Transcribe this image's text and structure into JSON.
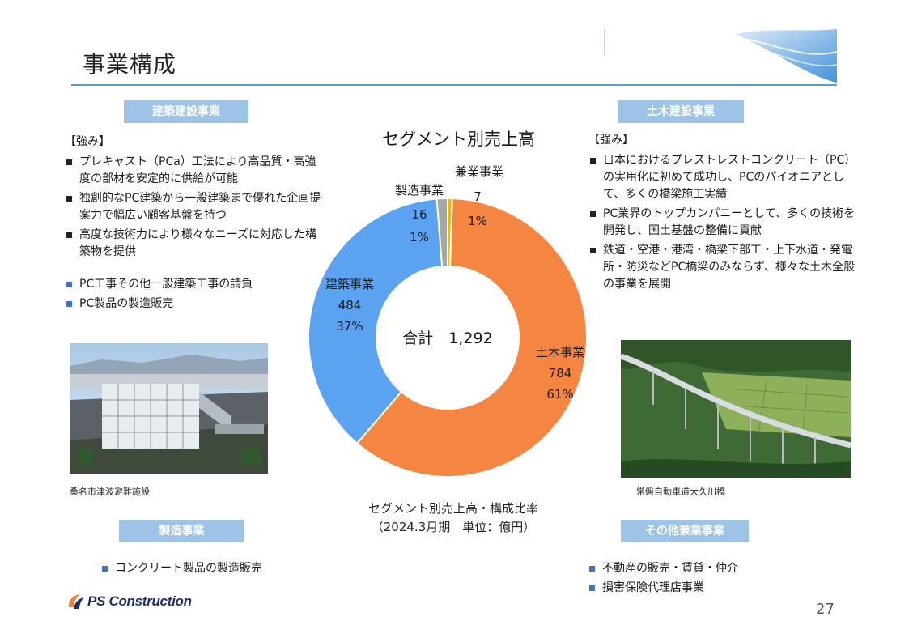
{
  "slide": {
    "title": "事業構成",
    "page_number": "27",
    "brand": "PS Construction"
  },
  "segments": {
    "architecture": {
      "header": "建築建設事業",
      "strength_title": "【強み】",
      "strengths": [
        "プレキャスト（PCa）工法により高品質・高強度の部材を安定的に供給が可能",
        "独創的なPC建築から一般建築まで優れた企画提案力で幅広い顧客基盤を持つ",
        "高度な技術力により様々なニーズに対応した構築物を提供"
      ],
      "business": [
        "PC工事その他一般建築工事の請負",
        "PC製品の製造販売"
      ],
      "photo_caption": "桑名市津波避難施設"
    },
    "civil": {
      "header": "土木建設事業",
      "strength_title": "【強み】",
      "strengths": [
        "日本におけるプレストレストコンクリート（PC）の実用化に初めて成功し、PCのパイオニアとして、多くの橋梁施工実績",
        "PC業界のトップカンパニーとして、多くの技術を開発し、国土基盤の整備に貢献",
        "鉄道・空港・港湾・橋梁下部工・上下水道・発電所・防災などPC橋梁のみならず、様々な土木全般の事業を展開"
      ],
      "photo_caption": "常磐自動車道大久川橋"
    },
    "manufacturing": {
      "header": "製造事業",
      "business": [
        "コンクリート製品の製造販売"
      ]
    },
    "other": {
      "header": "その他兼業事業",
      "business": [
        "不動産の販売・賃貸・仲介",
        "損害保険代理店事業"
      ]
    }
  },
  "chart_data": {
    "type": "pie",
    "title": "セグメント別売上高",
    "center_label": "合計　1,292",
    "slices": [
      {
        "name": "土木事業",
        "value": 784,
        "value_label": "784",
        "percent_label": "61%",
        "color": "#f58642"
      },
      {
        "name": "建築事業",
        "value": 484,
        "value_label": "484",
        "percent_label": "37%",
        "color": "#5ba3f0"
      },
      {
        "name": "製造事業",
        "value": 16,
        "value_label": "16",
        "percent_label": "1%",
        "color": "#a6a6a6"
      },
      {
        "name": "兼業事業",
        "value": 7,
        "value_label": "7",
        "percent_label": "1%",
        "color": "#f5b800"
      }
    ],
    "note_line1": "セグメント別売上高・構成比率",
    "note_line2": "（2024.3月期　単位：億円）"
  },
  "colors": {
    "header_bg": "#9dc3e6",
    "rule": "#5b9bd5",
    "bullet_blue": "#4472c4",
    "brand_navy": "#1d2f6f",
    "brand_orange": "#f08030"
  },
  "icons": {
    "logo": "ps-construction-logo-icon",
    "photo_arch": "building-photo-icon",
    "photo_civil": "bridge-photo-icon"
  }
}
